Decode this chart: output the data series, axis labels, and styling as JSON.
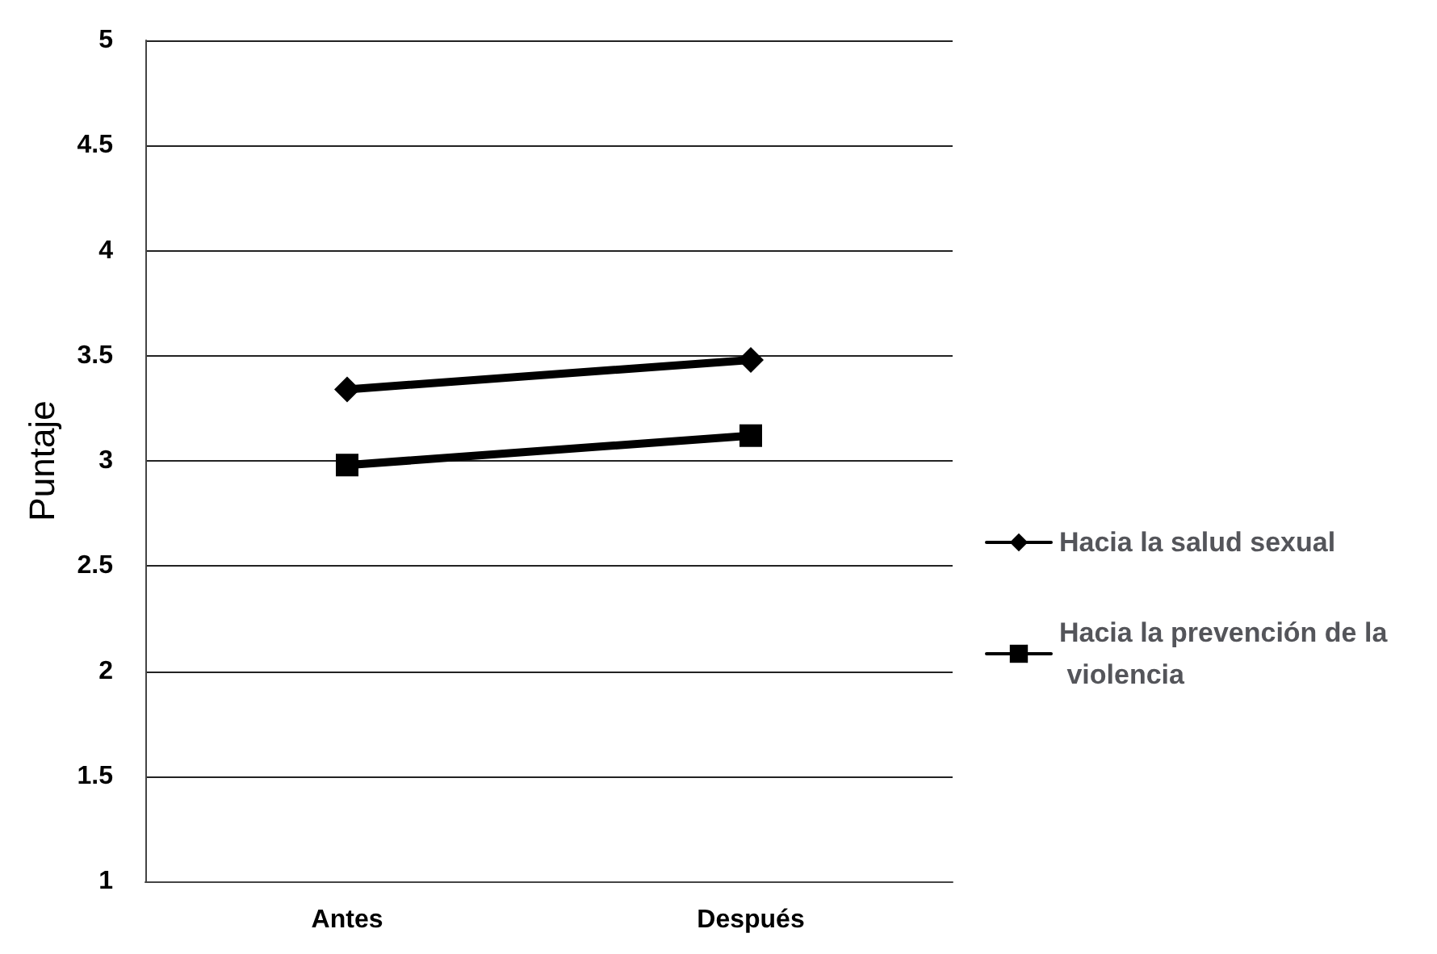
{
  "chart_data": {
    "type": "line",
    "ylabel": "Puntaje",
    "categories": [
      "Antes",
      "Después"
    ],
    "series": [
      {
        "name": "Hacia la salud sexual",
        "color": "#000000",
        "marker": "diamond",
        "values": [
          3.34,
          3.48
        ]
      },
      {
        "name": "Hacia la prevención de la violencia",
        "color": "#000000",
        "marker": "square",
        "values": [
          2.98,
          3.12
        ]
      }
    ],
    "ylim": [
      1,
      5
    ],
    "yticks": [
      1,
      1.5,
      2,
      2.5,
      3,
      3.5,
      4,
      4.5,
      5
    ],
    "grid": "y",
    "legend": "right",
    "line_style": "solid"
  }
}
